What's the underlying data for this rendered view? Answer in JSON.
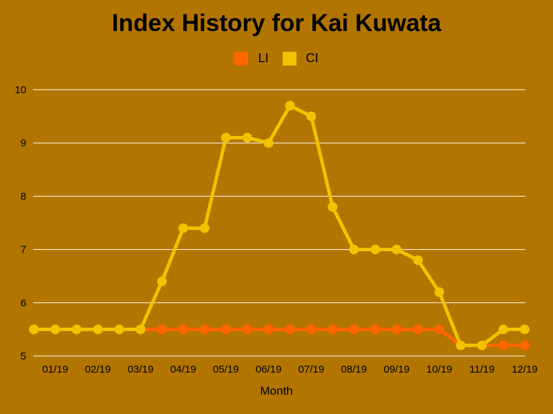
{
  "colors": {
    "background": "#B27500",
    "gridline": "#FFFFFF"
  },
  "chart_data": {
    "type": "line",
    "title": "Index History for Kai Kuwata",
    "xlabel": "Month",
    "ylabel": "",
    "ylim": [
      5,
      10
    ],
    "yticks": [
      5,
      6,
      7,
      8,
      9,
      10
    ],
    "xticks": [
      "01/19",
      "02/19",
      "03/19",
      "04/19",
      "05/19",
      "06/19",
      "07/19",
      "08/19",
      "09/19",
      "10/19",
      "11/19",
      "12/19"
    ],
    "grid": true,
    "legend_position": "top-center",
    "series": [
      {
        "name": "LI",
        "color": "#FF6600",
        "values": [
          5.5,
          5.5,
          5.5,
          5.5,
          5.5,
          5.5,
          5.5,
          5.5,
          5.5,
          5.5,
          5.5,
          5.5,
          5.5,
          5.5,
          5.5,
          5.5,
          5.5,
          5.5,
          5.5,
          5.5,
          5.2,
          5.2,
          5.2,
          5.2
        ]
      },
      {
        "name": "CI",
        "color": "#F2C200",
        "values": [
          5.5,
          5.5,
          5.5,
          5.5,
          5.5,
          5.5,
          6.4,
          7.4,
          7.4,
          9.1,
          9.1,
          9.0,
          9.7,
          9.5,
          7.8,
          7.0,
          7.0,
          7.0,
          6.8,
          6.2,
          5.2,
          5.2,
          5.5,
          5.5
        ]
      }
    ]
  }
}
